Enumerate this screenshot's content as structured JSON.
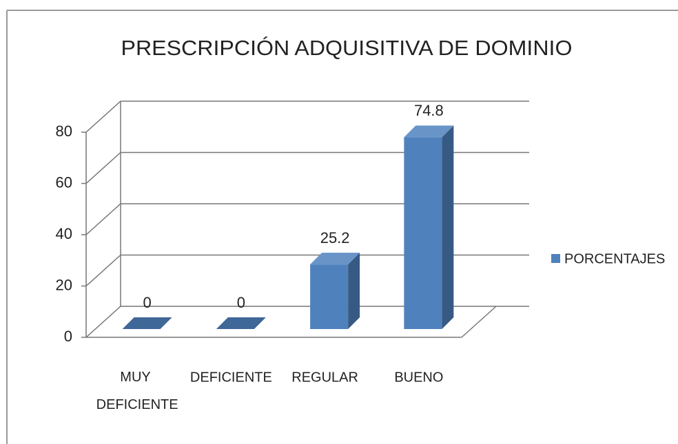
{
  "chart_data": {
    "type": "bar",
    "title": "PRESCRIPCIÓN ADQUISITIVA DE DOMINIO",
    "categories": [
      "MUY DEFICIENTE",
      "DEFICIENTE",
      "REGULAR",
      "BUENO"
    ],
    "series": [
      {
        "name": "PORCENTAJES",
        "color": "#4f81bd",
        "values": [
          0,
          0,
          25.2,
          74.8
        ]
      }
    ],
    "ylim": [
      0,
      80
    ],
    "yticks": [
      0,
      20,
      40,
      60,
      80
    ],
    "grid": true,
    "legend": "right",
    "three_d": true
  }
}
